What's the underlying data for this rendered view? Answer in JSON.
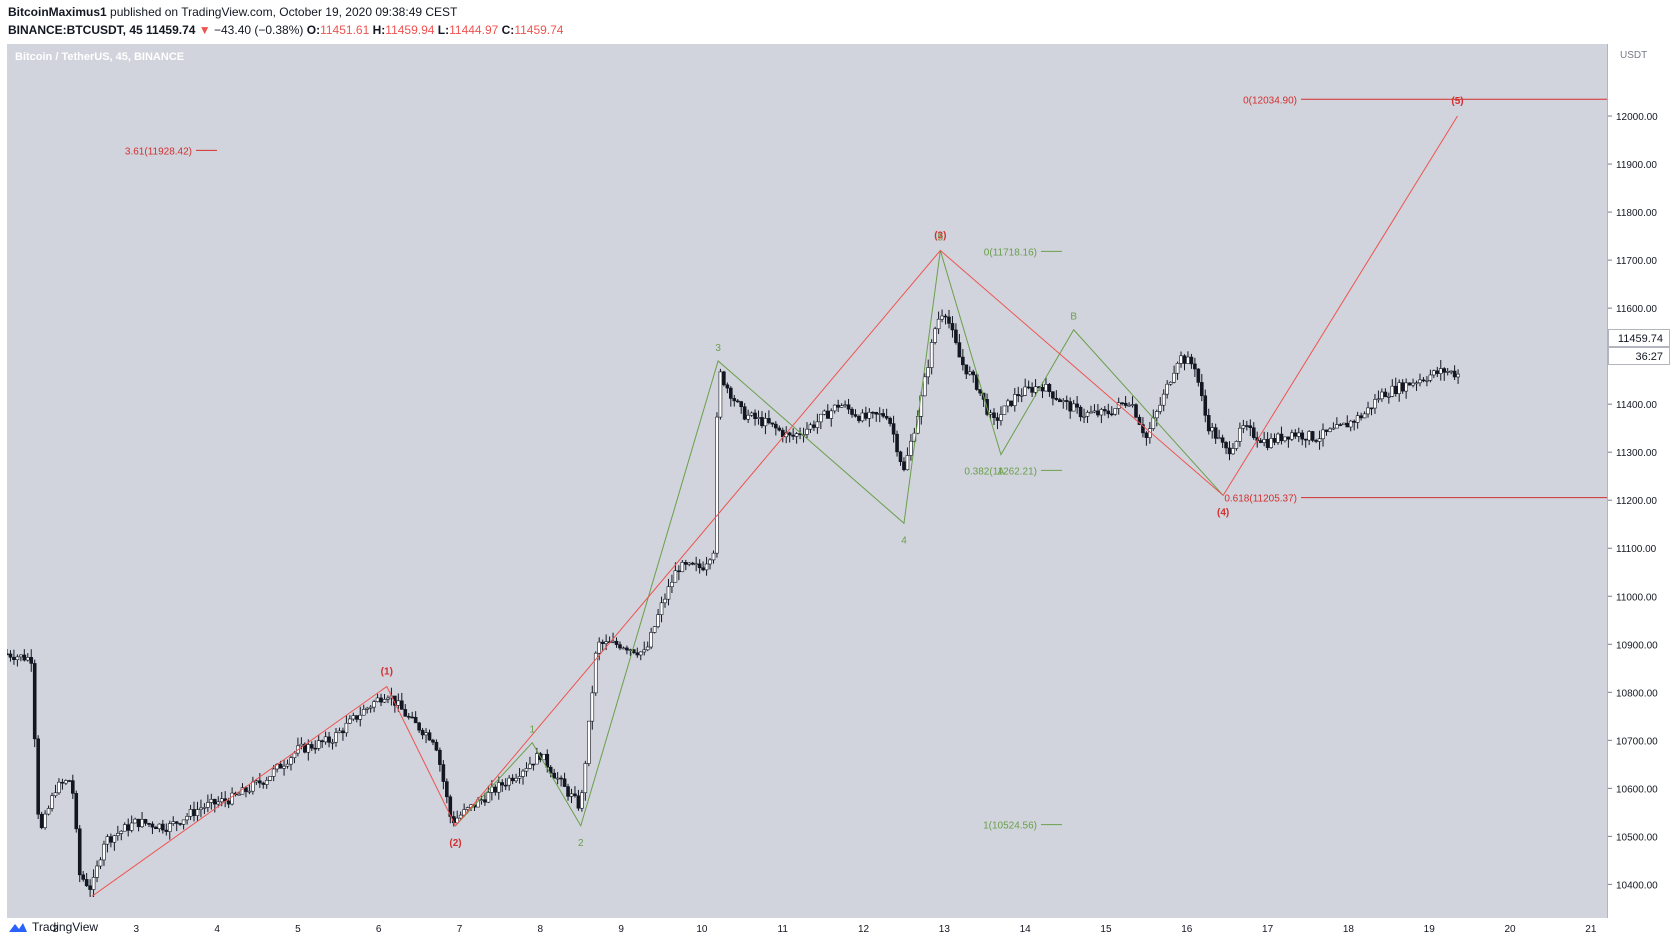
{
  "header": {
    "author": "BitcoinMaximus1",
    "published": "published on TradingView.com, October 19, 2020 09:38:49 CEST",
    "symbol": "BINANCE:BTCUSDT, 45",
    "last": "11459.74",
    "change": "−43.40 (−0.38%)",
    "open_label": "O:",
    "open": "11451.61",
    "high_label": "H:",
    "high": "11459.94",
    "low_label": "L:",
    "low": "11444.97",
    "close_label": "C:",
    "close": "11459.74"
  },
  "chart_title": "Bitcoin / TetherUS, 45, BINANCE",
  "currency": "USDT",
  "last_price_badge": "11459.74",
  "countdown_badge": "36:27",
  "footer_brand": "TradingView",
  "colors": {
    "bg": "#d1d4dc",
    "red": "#ef5350",
    "green": "#6a9f4b",
    "candle": "#131722"
  },
  "chart_data": {
    "type": "candlestick",
    "title": "Bitcoin / TetherUS, 45, BINANCE",
    "ylim": [
      10330,
      12150
    ],
    "xlim": [
      1.4,
      21.2
    ],
    "y_ticks": [
      "10400.00",
      "10500.00",
      "10600.00",
      "10700.00",
      "10800.00",
      "10900.00",
      "11000.00",
      "11100.00",
      "11200.00",
      "11300.00",
      "11400.00",
      "11500.00",
      "11600.00",
      "11700.00",
      "11800.00",
      "11900.00",
      "12000.00"
    ],
    "x_ticks": [
      "2",
      "3",
      "4",
      "5",
      "6",
      "7",
      "8",
      "9",
      "10",
      "11",
      "12",
      "13",
      "14",
      "15",
      "16",
      "17",
      "18",
      "19",
      "20",
      "21"
    ],
    "price_path": [
      [
        1.4,
        10880
      ],
      [
        1.7,
        10870
      ],
      [
        1.8,
        10500
      ],
      [
        2.0,
        10600
      ],
      [
        2.2,
        10620
      ],
      [
        2.3,
        10420
      ],
      [
        2.45,
        10390
      ],
      [
        2.6,
        10490
      ],
      [
        3.0,
        10530
      ],
      [
        3.4,
        10520
      ],
      [
        3.8,
        10560
      ],
      [
        4.2,
        10580
      ],
      [
        4.6,
        10620
      ],
      [
        5.0,
        10680
      ],
      [
        5.4,
        10700
      ],
      [
        5.8,
        10760
      ],
      [
        6.1,
        10800
      ],
      [
        6.4,
        10740
      ],
      [
        6.7,
        10700
      ],
      [
        6.9,
        10530
      ],
      [
        7.3,
        10580
      ],
      [
        7.7,
        10630
      ],
      [
        8.0,
        10670
      ],
      [
        8.3,
        10600
      ],
      [
        8.5,
        10560
      ],
      [
        8.7,
        10900
      ],
      [
        9.0,
        10900
      ],
      [
        9.3,
        10880
      ],
      [
        9.5,
        10980
      ],
      [
        9.7,
        11060
      ],
      [
        10.0,
        11060
      ],
      [
        10.15,
        11100
      ],
      [
        10.2,
        11470
      ],
      [
        10.5,
        11380
      ],
      [
        10.8,
        11360
      ],
      [
        11.1,
        11330
      ],
      [
        11.4,
        11360
      ],
      [
        11.7,
        11400
      ],
      [
        12.0,
        11370
      ],
      [
        12.3,
        11380
      ],
      [
        12.5,
        11260
      ],
      [
        12.7,
        11400
      ],
      [
        12.9,
        11570
      ],
      [
        13.0,
        11600
      ],
      [
        13.2,
        11490
      ],
      [
        13.4,
        11440
      ],
      [
        13.6,
        11360
      ],
      [
        13.9,
        11420
      ],
      [
        14.2,
        11440
      ],
      [
        14.5,
        11400
      ],
      [
        14.7,
        11380
      ],
      [
        15.0,
        11380
      ],
      [
        15.3,
        11410
      ],
      [
        15.5,
        11330
      ],
      [
        15.7,
        11410
      ],
      [
        15.9,
        11500
      ],
      [
        16.1,
        11480
      ],
      [
        16.25,
        11360
      ],
      [
        16.5,
        11300
      ],
      [
        16.7,
        11350
      ],
      [
        17.0,
        11320
      ],
      [
        17.3,
        11340
      ],
      [
        17.6,
        11330
      ],
      [
        17.9,
        11350
      ],
      [
        18.2,
        11380
      ],
      [
        18.4,
        11420
      ],
      [
        18.7,
        11440
      ],
      [
        19.0,
        11460
      ],
      [
        19.2,
        11470
      ],
      [
        19.4,
        11460
      ]
    ],
    "wave_red": {
      "points": [
        [
          2.45,
          10375
        ],
        [
          6.1,
          10812
        ],
        [
          6.95,
          10522
        ],
        [
          12.95,
          11720
        ],
        [
          16.45,
          11210
        ],
        [
          19.35,
          12000
        ]
      ],
      "labels": [
        "(1)",
        "(2)",
        "(3)",
        "(4)",
        "(5)"
      ]
    },
    "wave_green": {
      "points": [
        [
          6.95,
          10522
        ],
        [
          7.9,
          10695
        ],
        [
          8.5,
          10522
        ],
        [
          10.2,
          11490
        ],
        [
          12.5,
          11152
        ],
        [
          12.95,
          11720
        ],
        [
          13.7,
          11295
        ],
        [
          14.6,
          11555
        ],
        [
          16.45,
          11210
        ]
      ],
      "labels": [
        "1",
        "2",
        "3",
        "4",
        "5",
        "A",
        "B"
      ]
    },
    "fib_red": [
      {
        "label": "0(12034.90)",
        "price": 12034.9
      },
      {
        "label": "3.61(11928.42)",
        "price": 11928.42
      },
      {
        "label": "0.618(11205.37)",
        "price": 11205.37
      }
    ],
    "fib_green": [
      {
        "label": "0(11718.16)",
        "price": 11718.16
      },
      {
        "label": "0.382(11262.21)",
        "price": 11262.21
      },
      {
        "label": "1(10524.56)",
        "price": 10524.56
      }
    ]
  }
}
